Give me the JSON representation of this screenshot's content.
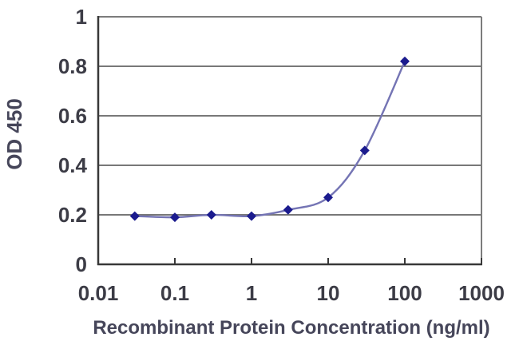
{
  "chart_data": {
    "type": "line",
    "title": "",
    "xlabel": "Recombinant Protein Concentration (ng/ml)",
    "ylabel": "OD 450",
    "x_scale": "log",
    "xlim": [
      0.01,
      1000
    ],
    "ylim": [
      0,
      1
    ],
    "x": [
      0.03,
      0.1,
      0.3,
      1,
      3,
      10,
      30,
      100
    ],
    "y": [
      0.195,
      0.19,
      0.2,
      0.195,
      0.22,
      0.27,
      0.46,
      0.82
    ],
    "x_ticks": [
      0.01,
      0.1,
      1,
      10,
      100,
      1000
    ],
    "x_tick_labels": [
      "0.01",
      "0.1",
      "1",
      "10",
      "100",
      "1000"
    ],
    "y_ticks": [
      0,
      0.2,
      0.4,
      0.6,
      0.8,
      1
    ],
    "y_tick_labels": [
      "0",
      "0.2",
      "0.4",
      "0.6",
      "0.8",
      "1"
    ],
    "grid": "horizontal",
    "legend": "none",
    "marker": "diamond",
    "colors": {
      "line": "#7474b4",
      "marker": "#1b1b8e",
      "grid": "#787878",
      "border": "#7c7c7c",
      "axis": "#383838",
      "tick_text": "#3c3c46",
      "label_text": "#46465a",
      "background": "#ffffff"
    }
  }
}
